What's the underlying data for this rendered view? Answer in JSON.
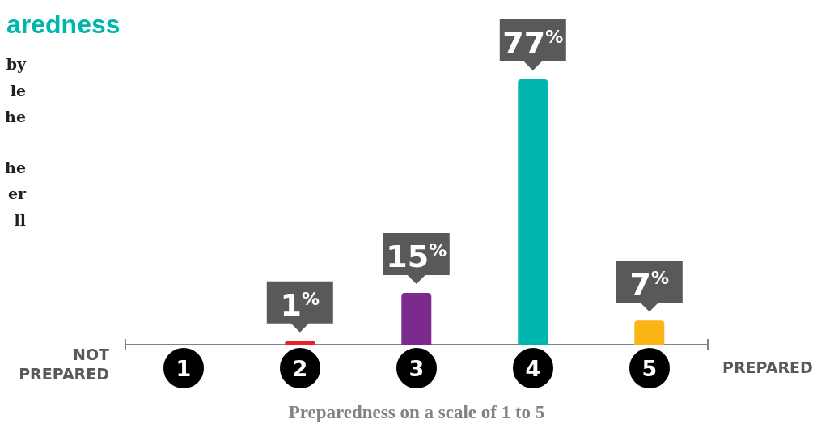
{
  "chart_data": {
    "type": "bar",
    "title": "aredness",
    "xlabel": "Preparedness on a scale of 1 to 5",
    "annotations": [
      "NOT PREPARED",
      "PREPARED",
      "by",
      "le",
      "he",
      "he",
      "er",
      "ll"
    ],
    "categories": [
      "1",
      "2",
      "3",
      "4",
      "5"
    ],
    "values": [
      0,
      1,
      15,
      77,
      7
    ],
    "value_labels": [
      null,
      "1$^{%}$",
      "15$^{%}$",
      "77$^{%}$",
      "7$^{%}$"
    ],
    "colors": [
      "#000000",
      "#e8202a",
      "#7b2a8e",
      "#00b5ad",
      "#fdb515"
    ],
    "grid": false,
    "legend": false
  }
}
